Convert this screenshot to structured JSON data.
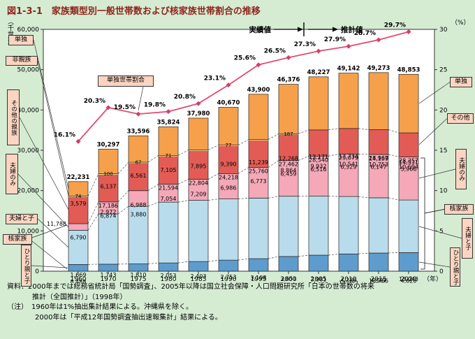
{
  "title": "図1-3-1　家族類型別一般世帯数および核家族世帯割合の推移",
  "axis": {
    "left_unit": "（千世帯）",
    "right_unit": "（%）",
    "year_suffix": "（年）"
  },
  "annotation": {
    "actual": "実績値",
    "projection": "推計値"
  },
  "line_callout": "単独世帯割合",
  "callouts": {
    "left": [
      {
        "text": "単独"
      },
      {
        "text": "非親族"
      },
      {
        "text": "その他の親族"
      },
      {
        "text": "夫婦のみ"
      },
      {
        "text": "夫婦と子"
      },
      {
        "text": "核家族"
      },
      {
        "text": "ひとり親と子"
      }
    ],
    "right": [
      {
        "text": "単独"
      },
      {
        "text": "その他"
      },
      {
        "text": "夫婦のみ"
      },
      {
        "text": "核家族"
      },
      {
        "text": "夫婦と子"
      },
      {
        "text": "ひとり親と子"
      }
    ]
  },
  "notes": {
    "line0": "資料：2000年までは総務省統計局「国勢調査」、2005年以降は国立社会保障・人口問題研究所「日本の世帯数の将来",
    "line1": "推計（全国推計）」（1998年）",
    "line2": "（注）　1960年は1%抽出集計結果による。沖縄県を除く。",
    "line3": "2000年は「平成12年国勢調査抽出速報集計」結果による。"
  },
  "chart_data": {
    "type": "bar",
    "combo": "stacked-bar+line",
    "unit": "千世帯",
    "categories": [
      "1960",
      "1970",
      "1975",
      "1980",
      "1985",
      "1990",
      "1995",
      "2000",
      "2005",
      "2010",
      "2015",
      "2020"
    ],
    "totals": [
      22231,
      30297,
      33596,
      35824,
      37980,
      40670,
      43900,
      46376,
      48227,
      49142,
      49273,
      48853
    ],
    "series": [
      {
        "name": "ひとり親と子",
        "color": "#5e9ccd",
        "values": [
          1669,
          1743,
          1810,
          2053,
          2403,
          2753,
          3108,
          3651,
          3981,
          4286,
          4507,
          4620
        ],
        "labels": [
          1,
          1,
          1,
          1,
          1,
          1,
          1,
          1,
          1,
          1,
          1,
          1
        ]
      },
      {
        "name": "夫婦と子",
        "color": "#b9dcec",
        "values": [
          8488,
          12471,
          14290,
          15081,
          15189,
          15172,
          15032,
          14946,
          14627,
          14252,
          13706,
          13043
        ],
        "labels": [
          1,
          1,
          1,
          1,
          1,
          1,
          1,
          1,
          1,
          1,
          1,
          1
        ]
      },
      {
        "name": "夫婦のみ",
        "color": "#f4a8b8",
        "values": [
          1631,
          2972,
          3880,
          4460,
          5212,
          6293,
          7620,
          8864,
          9932,
          10541,
          10753,
          10694
        ],
        "labels": [
          0,
          1,
          1,
          0,
          0,
          0,
          0,
          1,
          1,
          1,
          1,
          1
        ]
      },
      {
        "name": "その他の親族",
        "color": "#e25c55",
        "values": [
          6790,
          6874,
          6988,
          7054,
          7209,
          6986,
          6773,
          6459,
          6516,
          6329,
          6147,
          5966
        ],
        "labels": [
          1,
          1,
          1,
          1,
          1,
          1,
          1,
          1,
          1,
          1,
          1,
          1
        ]
      },
      {
        "name": "非親族",
        "color": "#f6ef8e",
        "values": [
          74,
          100,
          67,
          71,
          72,
          77,
          128,
          187,
          0,
          0,
          0,
          0
        ],
        "labels": [
          1,
          1,
          1,
          1,
          0,
          1,
          0,
          1,
          0,
          0,
          0,
          0
        ]
      },
      {
        "name": "単独",
        "color": "#f6a04b",
        "values": [
          3579,
          6137,
          6561,
          7105,
          7895,
          9390,
          11239,
          12268,
          13171,
          13734,
          14159,
          14531
        ],
        "labels": [
          1,
          1,
          1,
          1,
          1,
          1,
          1,
          1,
          1,
          1,
          1,
          1
        ]
      }
    ],
    "kakazoku": {
      "label": "核家族",
      "values": [
        11788,
        17186,
        19980,
        21594,
        22804,
        24218,
        25760,
        27462,
        28540,
        29079,
        28967,
        28357
      ],
      "labels": [
        1,
        1,
        0,
        1,
        1,
        1,
        1,
        1,
        1,
        1,
        1,
        1
      ]
    },
    "line": {
      "name": "単独世帯割合",
      "color": "#e34b72",
      "values": [
        16.1,
        20.3,
        19.5,
        19.8,
        20.8,
        23.1,
        25.6,
        26.5,
        27.3,
        27.9,
        28.7,
        29.7
      ]
    },
    "y_left": {
      "max": 60000,
      "ticks": [
        0,
        10000,
        20000,
        30000,
        40000,
        50000,
        60000
      ]
    },
    "y_right": {
      "max": 30,
      "ticks": [
        0,
        5,
        10,
        15,
        20,
        25,
        30
      ]
    },
    "legend_position": "callouts",
    "grid": false
  }
}
